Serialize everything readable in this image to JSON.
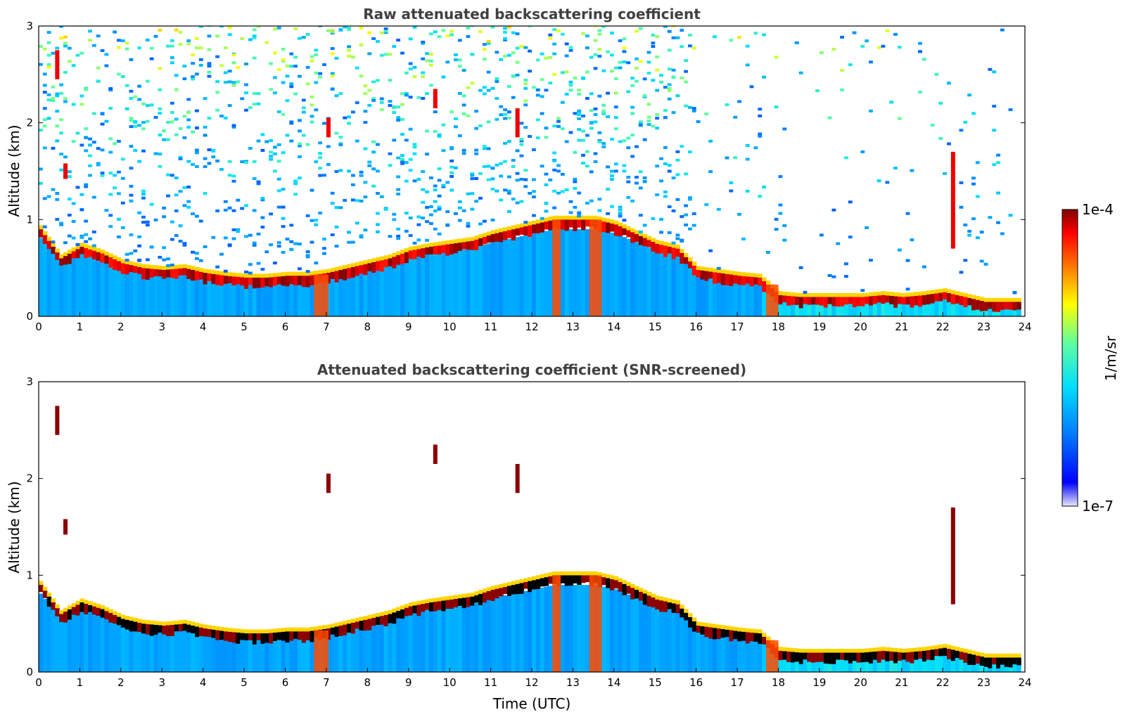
{
  "chart_data": [
    {
      "type": "heatmap",
      "title": "Raw attenuated backscattering coefficient",
      "xlabel": "",
      "ylabel": "Altitude (km)",
      "xlim": [
        0,
        24
      ],
      "ylim": [
        0,
        3
      ],
      "xticks": [
        "0",
        "1",
        "2",
        "3",
        "4",
        "5",
        "6",
        "7",
        "8",
        "9",
        "10",
        "11",
        "12",
        "13",
        "14",
        "15",
        "16",
        "17",
        "18",
        "19",
        "20",
        "21",
        "22",
        "23",
        "24"
      ],
      "yticks": [
        "0",
        "1",
        "2",
        "3"
      ],
      "boundary_layer_top_km": {
        "x": [
          0,
          0.5,
          1,
          1.5,
          2,
          2.5,
          3,
          3.5,
          4,
          4.5,
          5,
          5.5,
          6,
          6.5,
          7,
          7.5,
          8,
          8.5,
          9,
          9.5,
          10,
          10.5,
          11,
          11.5,
          12,
          12.5,
          13,
          13.5,
          14,
          14.5,
          15,
          15.5,
          16,
          16.5,
          17,
          17.5,
          18,
          18.5,
          19,
          19.5,
          20,
          20.5,
          21,
          21.5,
          22,
          22.5,
          23,
          23.5,
          23.8
        ],
        "y": [
          0.9,
          0.6,
          0.72,
          0.65,
          0.55,
          0.5,
          0.48,
          0.5,
          0.45,
          0.42,
          0.4,
          0.4,
          0.42,
          0.42,
          0.45,
          0.5,
          0.55,
          0.6,
          0.68,
          0.72,
          0.75,
          0.78,
          0.85,
          0.9,
          0.95,
          1.0,
          1.0,
          1.0,
          0.95,
          0.85,
          0.75,
          0.7,
          0.48,
          0.45,
          0.42,
          0.4,
          0.22,
          0.2,
          0.2,
          0.2,
          0.2,
          0.22,
          0.2,
          0.22,
          0.25,
          0.2,
          0.15,
          0.15,
          0.15
        ]
      },
      "noise_upper_limit_hour": 24
    },
    {
      "type": "heatmap",
      "title": "Attenuated backscattering coefficient (SNR-screened)",
      "xlabel": "Time (UTC)",
      "ylabel": "Altitude (km)",
      "xlim": [
        0,
        24
      ],
      "ylim": [
        0,
        3
      ],
      "xticks": [
        "0",
        "1",
        "2",
        "3",
        "4",
        "5",
        "6",
        "7",
        "8",
        "9",
        "10",
        "11",
        "12",
        "13",
        "14",
        "15",
        "16",
        "17",
        "18",
        "19",
        "20",
        "21",
        "22",
        "23",
        "24"
      ],
      "yticks": [
        "0",
        "1",
        "2",
        "3"
      ]
    }
  ],
  "colorbar": {
    "label": "1/m/sr",
    "max_label": "1e-4",
    "min_label": "1e-7",
    "colors": [
      "#e8e8f8",
      "#0000ff",
      "#00a0ff",
      "#00ffff",
      "#ffff00",
      "#ff8000",
      "#ff0000",
      "#800000"
    ]
  }
}
